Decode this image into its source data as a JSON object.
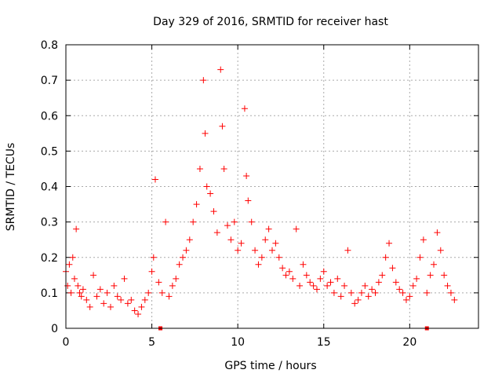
{
  "chart_data": {
    "type": "scatter",
    "title": "Day 329 of 2016, SRMTID for receiver hast",
    "xlabel": "GPS time / hours",
    "ylabel": "SRMTID / TECUs",
    "xlim": [
      0,
      24
    ],
    "ylim": [
      0,
      0.8
    ],
    "xticks": [
      0,
      5,
      10,
      15,
      20
    ],
    "xtick_labels": [
      "0",
      "5",
      "10",
      "15",
      "20"
    ],
    "yticks": [
      0,
      0.1,
      0.2,
      0.3,
      0.4,
      0.5,
      0.6,
      0.7,
      0.8
    ],
    "ytick_labels": [
      "0",
      "0.1",
      "0.2",
      "0.3",
      "0.4",
      "0.5",
      "0.6",
      "0.7",
      "0.8"
    ],
    "grid": true,
    "marker": "+",
    "color": "#ff0000",
    "series": [
      {
        "name": "SRMTID",
        "x": [
          0.0,
          0.1,
          0.2,
          0.3,
          0.4,
          0.5,
          0.6,
          0.7,
          0.8,
          0.9,
          1.0,
          1.2,
          1.4,
          1.6,
          1.8,
          2.0,
          2.2,
          2.4,
          2.6,
          2.8,
          3.0,
          3.2,
          3.4,
          3.6,
          3.8,
          4.0,
          4.2,
          4.4,
          4.6,
          4.8,
          5.0,
          5.1,
          5.2,
          5.4,
          5.6,
          5.8,
          6.0,
          6.2,
          6.4,
          6.6,
          6.8,
          7.0,
          7.2,
          7.4,
          7.6,
          7.8,
          8.0,
          8.1,
          8.2,
          8.4,
          8.6,
          8.8,
          9.0,
          9.1,
          9.2,
          9.4,
          9.6,
          9.8,
          10.0,
          10.2,
          10.4,
          10.5,
          10.6,
          10.8,
          11.0,
          11.2,
          11.4,
          11.6,
          11.8,
          12.0,
          12.2,
          12.4,
          12.6,
          12.8,
          13.0,
          13.2,
          13.4,
          13.6,
          13.8,
          14.0,
          14.2,
          14.4,
          14.6,
          14.8,
          15.0,
          15.2,
          15.4,
          15.6,
          15.8,
          16.0,
          16.2,
          16.4,
          16.6,
          16.8,
          17.0,
          17.2,
          17.4,
          17.6,
          17.8,
          18.0,
          18.2,
          18.4,
          18.6,
          18.8,
          19.0,
          19.2,
          19.4,
          19.6,
          19.8,
          20.0,
          20.2,
          20.4,
          20.6,
          20.8,
          21.0,
          21.2,
          21.4,
          21.6,
          21.8,
          22.0,
          22.2,
          22.4,
          22.6
        ],
        "y": [
          0.16,
          0.12,
          0.18,
          0.1,
          0.2,
          0.14,
          0.28,
          0.12,
          0.1,
          0.09,
          0.11,
          0.08,
          0.06,
          0.15,
          0.09,
          0.11,
          0.07,
          0.1,
          0.06,
          0.12,
          0.09,
          0.08,
          0.14,
          0.07,
          0.08,
          0.05,
          0.04,
          0.06,
          0.08,
          0.1,
          0.16,
          0.2,
          0.42,
          0.13,
          0.1,
          0.3,
          0.09,
          0.12,
          0.14,
          0.18,
          0.2,
          0.22,
          0.25,
          0.3,
          0.35,
          0.45,
          0.7,
          0.55,
          0.4,
          0.38,
          0.33,
          0.27,
          0.73,
          0.57,
          0.45,
          0.29,
          0.25,
          0.3,
          0.22,
          0.24,
          0.62,
          0.43,
          0.36,
          0.3,
          0.22,
          0.18,
          0.2,
          0.25,
          0.28,
          0.22,
          0.24,
          0.2,
          0.17,
          0.15,
          0.16,
          0.14,
          0.28,
          0.12,
          0.18,
          0.15,
          0.13,
          0.12,
          0.11,
          0.14,
          0.16,
          0.12,
          0.13,
          0.1,
          0.14,
          0.09,
          0.12,
          0.22,
          0.1,
          0.07,
          0.08,
          0.1,
          0.12,
          0.09,
          0.11,
          0.1,
          0.13,
          0.15,
          0.2,
          0.24,
          0.17,
          0.13,
          0.11,
          0.1,
          0.08,
          0.09,
          0.12,
          0.14,
          0.2,
          0.25,
          0.1,
          0.15,
          0.18,
          0.27,
          0.22,
          0.15,
          0.12,
          0.1,
          0.08
        ]
      }
    ],
    "markers_on_x_axis": [
      5.5,
      21.0
    ]
  }
}
